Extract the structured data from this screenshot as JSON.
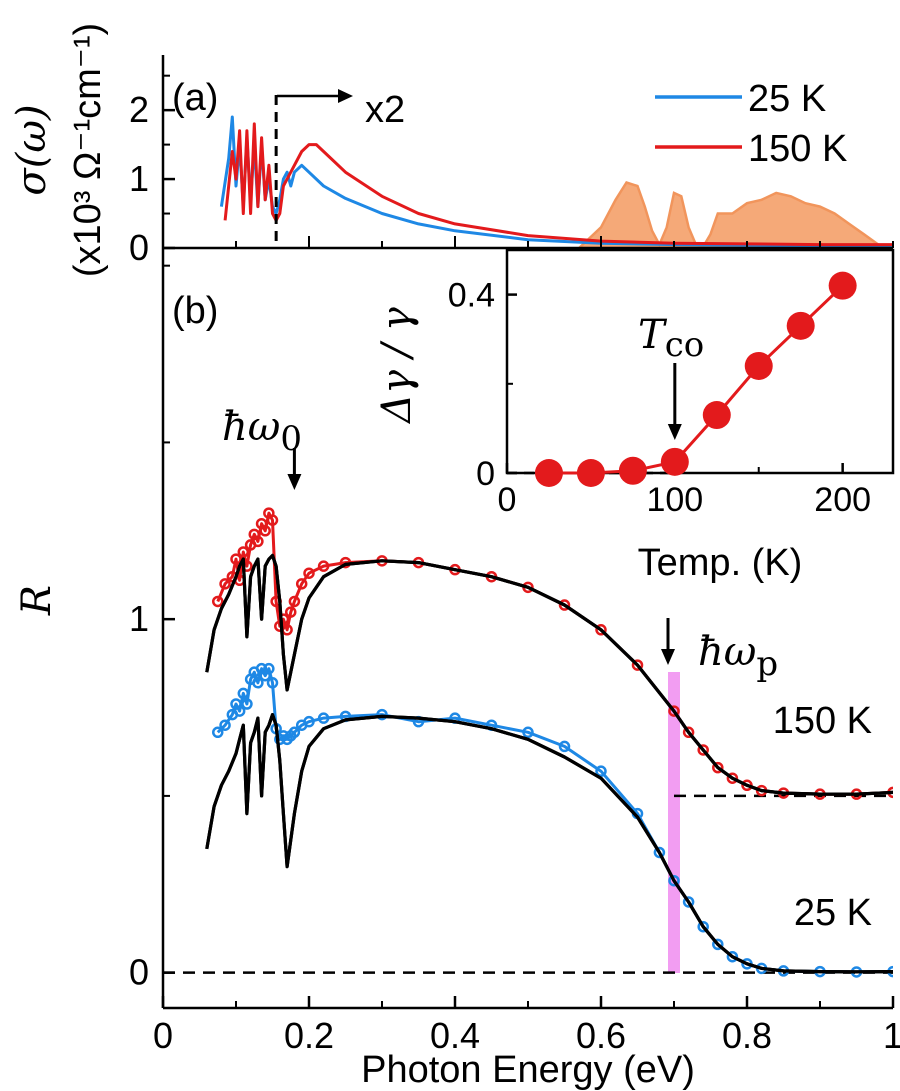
{
  "colors": {
    "c25": "#1e88e5",
    "c150": "#e31a1c",
    "fit": "#000000",
    "fill": "#f4a06a",
    "band": "#f08cf0"
  },
  "chart_data": [
    {
      "panel": "(a)",
      "type": "line",
      "ylabel": "σ(ω)",
      "ylabel_units": "(x10³ Ω⁻¹cm⁻¹)",
      "xlim": [
        0,
        1
      ],
      "ylim": [
        0,
        2.8
      ],
      "yticks": [
        "0",
        "1",
        "2"
      ],
      "x2_label": "x2",
      "x2_break": 0.155,
      "legend": {
        "position": "top-right",
        "entries": [
          "25 K",
          "150 K"
        ]
      },
      "series": [
        {
          "name": "25 K",
          "x": [
            0.08,
            0.09,
            0.095,
            0.1,
            0.105,
            0.11,
            0.115,
            0.12,
            0.125,
            0.13,
            0.135,
            0.14,
            0.145,
            0.15,
            0.155,
            0.16,
            0.165,
            0.17,
            0.175,
            0.18,
            0.19,
            0.2,
            0.22,
            0.25,
            0.3,
            0.35,
            0.4,
            0.5,
            0.6,
            0.7,
            0.8,
            0.9,
            1.0
          ],
          "y": [
            0.6,
            1.3,
            1.9,
            0.9,
            1.5,
            0.6,
            1.6,
            0.7,
            1.5,
            0.6,
            1.5,
            0.7,
            1.0,
            0.6,
            0.5,
            0.7,
            1.0,
            1.1,
            0.9,
            1.1,
            1.2,
            1.1,
            0.9,
            0.72,
            0.5,
            0.35,
            0.25,
            0.12,
            0.07,
            0.05,
            0.04,
            0.03,
            0.03
          ]
        },
        {
          "name": "150 K",
          "x": [
            0.085,
            0.095,
            0.1,
            0.105,
            0.11,
            0.115,
            0.12,
            0.125,
            0.13,
            0.135,
            0.14,
            0.145,
            0.15,
            0.155,
            0.16,
            0.165,
            0.17,
            0.18,
            0.19,
            0.2,
            0.21,
            0.22,
            0.25,
            0.3,
            0.35,
            0.4,
            0.5,
            0.6,
            0.7,
            0.8,
            0.9,
            1.0
          ],
          "y": [
            0.4,
            1.4,
            1.0,
            1.7,
            0.5,
            1.7,
            0.5,
            1.8,
            0.6,
            1.6,
            0.7,
            1.2,
            0.5,
            0.4,
            0.5,
            0.9,
            1.0,
            1.2,
            1.4,
            1.5,
            1.5,
            1.4,
            1.1,
            0.75,
            0.5,
            0.35,
            0.18,
            0.1,
            0.07,
            0.06,
            0.05,
            0.05
          ]
        }
      ],
      "filled_spectrum": {
        "x": [
          0.57,
          0.6,
          0.62,
          0.635,
          0.65,
          0.66,
          0.67,
          0.68,
          0.69,
          0.7,
          0.71,
          0.72,
          0.73,
          0.74,
          0.75,
          0.76,
          0.78,
          0.8,
          0.82,
          0.84,
          0.86,
          0.88,
          0.9,
          0.92,
          0.94,
          0.96,
          0.98,
          1.0
        ],
        "y": [
          0,
          0.3,
          0.7,
          0.95,
          0.9,
          0.6,
          0.25,
          0.05,
          0.3,
          0.8,
          0.75,
          0.3,
          0.05,
          0.02,
          0.2,
          0.5,
          0.5,
          0.65,
          0.7,
          0.8,
          0.75,
          0.65,
          0.6,
          0.5,
          0.35,
          0.2,
          0.05,
          0
        ]
      }
    },
    {
      "panel": "(b)",
      "type": "line",
      "ylabel": "R",
      "xlabel": "Photon Energy (eV)",
      "xlim": [
        0,
        1
      ],
      "ylim": [
        -0.1,
        2.05
      ],
      "xticks": [
        "0",
        "0.2",
        "0.4",
        "0.6",
        "0.8",
        "1"
      ],
      "yticks": [
        "0",
        "1"
      ],
      "labels": [
        "150 K",
        "25 K"
      ],
      "omega0_label": "ħω",
      "omega0_sub": "0",
      "omega0_x": 0.18,
      "omegap_label": "ħω",
      "omegap_sub": "p",
      "omegap_x": 0.7,
      "offset_150K": 0.5,
      "series": [
        {
          "name": "150 K data",
          "x": [
            0.075,
            0.085,
            0.095,
            0.1,
            0.105,
            0.11,
            0.115,
            0.12,
            0.125,
            0.13,
            0.135,
            0.14,
            0.145,
            0.15,
            0.155,
            0.16,
            0.165,
            0.17,
            0.175,
            0.18,
            0.19,
            0.2,
            0.22,
            0.25,
            0.3,
            0.35,
            0.4,
            0.45,
            0.5,
            0.55,
            0.6,
            0.65,
            0.7,
            0.72,
            0.74,
            0.76,
            0.78,
            0.8,
            0.82,
            0.85,
            0.9,
            0.95,
            1.0
          ],
          "y": [
            1.05,
            1.1,
            1.12,
            1.17,
            1.11,
            1.19,
            1.15,
            1.21,
            1.24,
            1.22,
            1.27,
            1.25,
            1.3,
            1.28,
            1.05,
            0.98,
            1.0,
            0.97,
            1.02,
            1.05,
            1.1,
            1.13,
            1.15,
            1.16,
            1.165,
            1.16,
            1.14,
            1.12,
            1.09,
            1.04,
            0.97,
            0.87,
            0.74,
            0.68,
            0.63,
            0.58,
            0.55,
            0.53,
            0.515,
            0.508,
            0.505,
            0.505,
            0.51
          ]
        },
        {
          "name": "150 K fit",
          "x": [
            0.06,
            0.07,
            0.08,
            0.09,
            0.1,
            0.105,
            0.11,
            0.115,
            0.12,
            0.125,
            0.13,
            0.135,
            0.14,
            0.145,
            0.15,
            0.155,
            0.16,
            0.165,
            0.17,
            0.18,
            0.19,
            0.2,
            0.22,
            0.25,
            0.3,
            0.35,
            0.4,
            0.45,
            0.5,
            0.55,
            0.6,
            0.65,
            0.7,
            0.72,
            0.74,
            0.76,
            0.78,
            0.8,
            0.82,
            0.85,
            0.9,
            0.95,
            1.0
          ],
          "y": [
            0.85,
            0.97,
            1.03,
            1.07,
            1.12,
            1.15,
            1.17,
            0.95,
            1.12,
            1.15,
            1.17,
            1.0,
            1.15,
            1.17,
            1.18,
            1.15,
            1.05,
            0.9,
            0.8,
            0.9,
            1.0,
            1.06,
            1.12,
            1.155,
            1.165,
            1.16,
            1.14,
            1.12,
            1.09,
            1.04,
            0.97,
            0.87,
            0.74,
            0.68,
            0.63,
            0.58,
            0.55,
            0.53,
            0.515,
            0.508,
            0.505,
            0.505,
            0.51
          ]
        },
        {
          "name": "25 K data",
          "x": [
            0.075,
            0.085,
            0.095,
            0.1,
            0.105,
            0.11,
            0.115,
            0.12,
            0.125,
            0.13,
            0.135,
            0.14,
            0.145,
            0.15,
            0.155,
            0.16,
            0.165,
            0.17,
            0.175,
            0.18,
            0.19,
            0.2,
            0.22,
            0.25,
            0.3,
            0.35,
            0.4,
            0.45,
            0.5,
            0.55,
            0.6,
            0.65,
            0.68,
            0.7,
            0.72,
            0.74,
            0.76,
            0.78,
            0.8,
            0.82,
            0.85,
            0.9,
            0.95,
            1.0
          ],
          "y": [
            0.68,
            0.7,
            0.73,
            0.76,
            0.74,
            0.79,
            0.76,
            0.83,
            0.85,
            0.82,
            0.86,
            0.84,
            0.86,
            0.82,
            0.69,
            0.66,
            0.67,
            0.66,
            0.67,
            0.68,
            0.7,
            0.71,
            0.72,
            0.725,
            0.73,
            0.71,
            0.72,
            0.7,
            0.68,
            0.64,
            0.57,
            0.45,
            0.34,
            0.26,
            0.2,
            0.13,
            0.08,
            0.045,
            0.025,
            0.012,
            0.005,
            0.003,
            0.002,
            0.003
          ]
        },
        {
          "name": "25 K fit",
          "x": [
            0.06,
            0.07,
            0.08,
            0.09,
            0.1,
            0.105,
            0.11,
            0.115,
            0.12,
            0.125,
            0.13,
            0.135,
            0.14,
            0.145,
            0.15,
            0.155,
            0.16,
            0.165,
            0.17,
            0.18,
            0.19,
            0.2,
            0.22,
            0.25,
            0.3,
            0.35,
            0.4,
            0.45,
            0.5,
            0.55,
            0.6,
            0.65,
            0.68,
            0.7,
            0.72,
            0.74,
            0.76,
            0.78,
            0.8,
            0.82,
            0.85,
            0.9,
            0.95,
            1.0
          ],
          "y": [
            0.35,
            0.47,
            0.53,
            0.57,
            0.62,
            0.66,
            0.7,
            0.45,
            0.65,
            0.68,
            0.72,
            0.5,
            0.68,
            0.7,
            0.73,
            0.7,
            0.6,
            0.45,
            0.3,
            0.45,
            0.57,
            0.64,
            0.69,
            0.715,
            0.725,
            0.72,
            0.71,
            0.69,
            0.66,
            0.61,
            0.55,
            0.44,
            0.34,
            0.26,
            0.2,
            0.13,
            0.08,
            0.045,
            0.025,
            0.012,
            0.005,
            0.003,
            0.002,
            0.003
          ]
        }
      ],
      "inset": {
        "type": "scatter",
        "ylabel": "Δγ / γ",
        "xlabel": "Temp. (K)",
        "xlim": [
          0,
          230
        ],
        "ylim": [
          0,
          0.5
        ],
        "xticks": [
          "0",
          "100",
          "200"
        ],
        "yticks": [
          "0",
          "0.4"
        ],
        "tco_label": "T",
        "tco_sub": "co",
        "tco_x": 100,
        "x": [
          25,
          50,
          75,
          100,
          125,
          150,
          175,
          200
        ],
        "y": [
          0.0,
          0.0,
          0.005,
          0.025,
          0.13,
          0.24,
          0.33,
          0.42
        ]
      }
    }
  ]
}
